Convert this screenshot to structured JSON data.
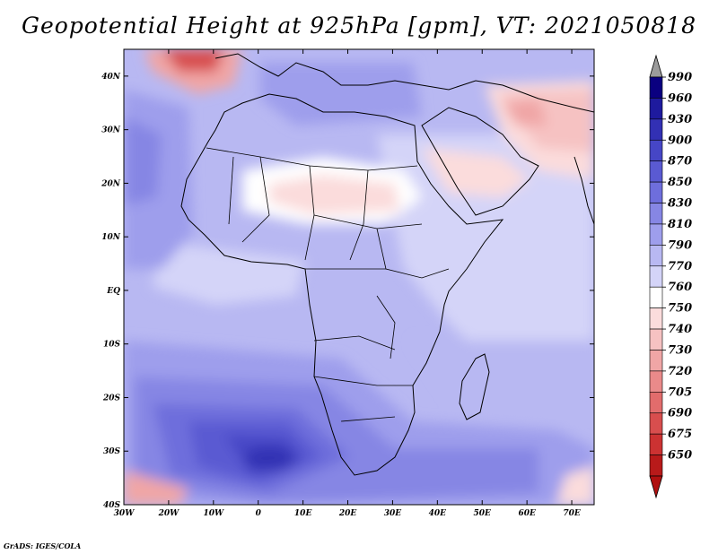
{
  "title": "Geopotential Height at 925hPa [gpm], VT: 2021050818",
  "credit": "GrADS: IGES/COLA",
  "map": {
    "projection": "lat-lon",
    "lon_range": [
      -30,
      75
    ],
    "lat_range": [
      -40,
      45
    ],
    "lon_ticks": [
      "30W",
      "20W",
      "10W",
      "0",
      "10E",
      "20E",
      "30E",
      "40E",
      "50E",
      "60E",
      "70E"
    ],
    "lat_ticks": [
      "40N",
      "30N",
      "20N",
      "10N",
      "EQ",
      "10S",
      "20S",
      "30S",
      "40S"
    ],
    "variable": "Geopotential Height",
    "level": "925hPa",
    "units": "gpm",
    "valid_time": "2021050818"
  },
  "colorbar": {
    "levels": [
      "990",
      "960",
      "930",
      "900",
      "870",
      "850",
      "830",
      "810",
      "790",
      "770",
      "760",
      "750",
      "740",
      "730",
      "720",
      "705",
      "690",
      "675",
      "650"
    ],
    "colors": [
      "#0a0080",
      "#1e1a9e",
      "#3230b4",
      "#4646c6",
      "#5a5ad2",
      "#6e6edc",
      "#8686e4",
      "#9e9eec",
      "#b8b8f2",
      "#d4d4f8",
      "#ffffff",
      "#fbdcdc",
      "#f6c2c2",
      "#f0a6a6",
      "#ea8a8a",
      "#e26c6c",
      "#d84e4e",
      "#cc3232",
      "#b81a1a"
    ],
    "top_arrow_color": "#9b9b9b",
    "bottom_arrow_color": "#b01010"
  }
}
